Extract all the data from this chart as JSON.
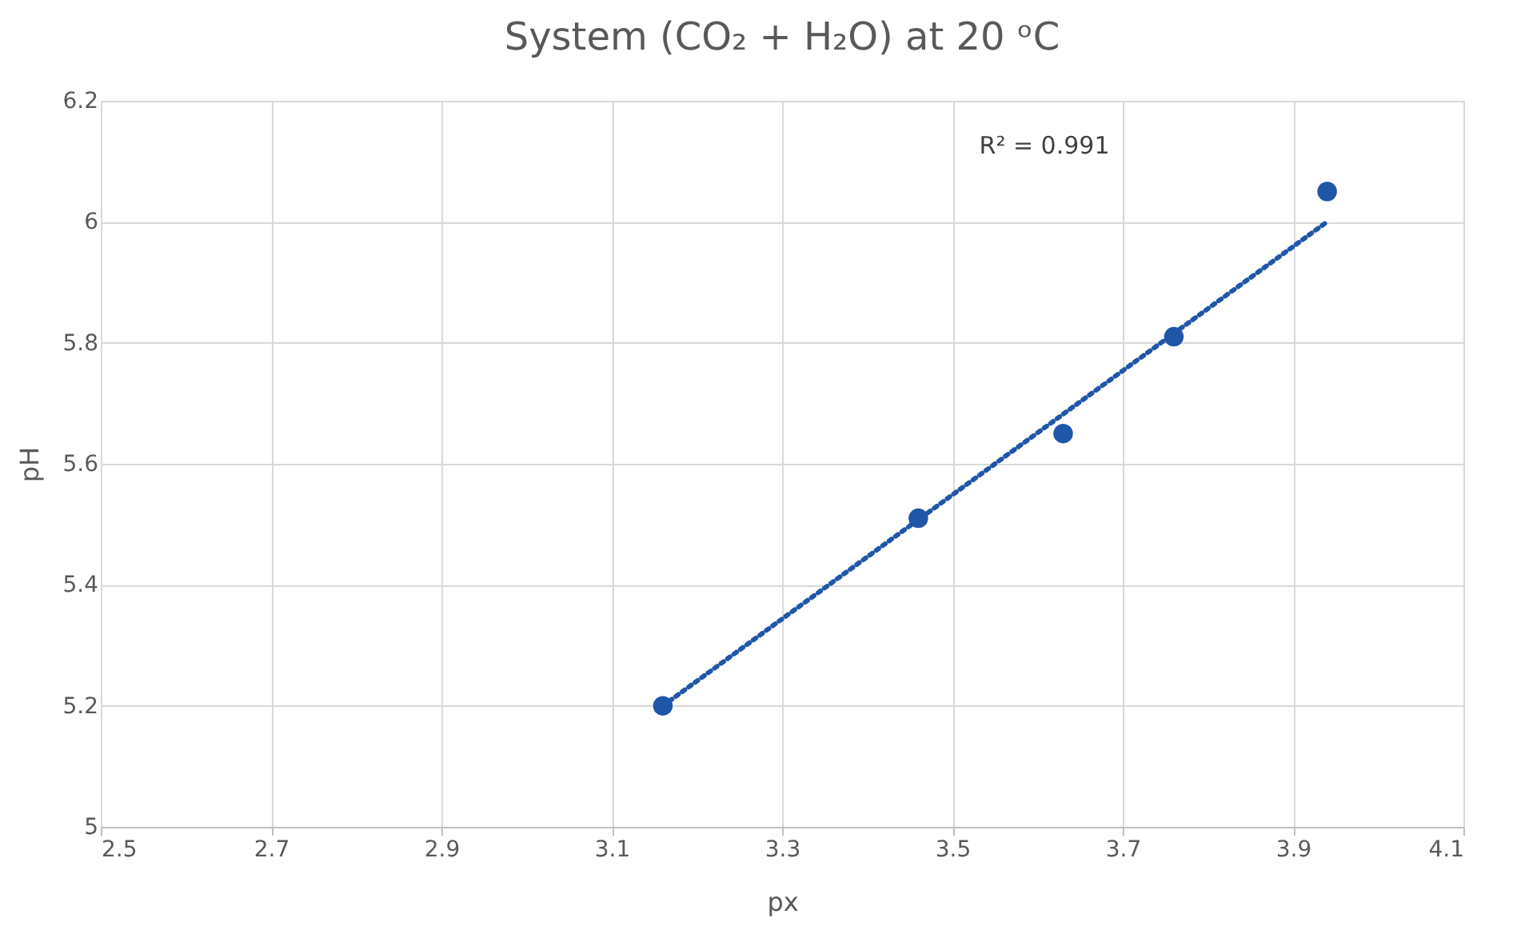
{
  "chart_data": {
    "type": "scatter",
    "title": "System (CO₂ + H₂O) at 20 ᵒC",
    "xlabel": "px",
    "ylabel": "pH",
    "xlim": [
      2.5,
      4.1
    ],
    "xticks": [
      2.5,
      2.7,
      2.9,
      3.1,
      3.3,
      3.5,
      3.7,
      3.9,
      4.1
    ],
    "ylim": [
      5,
      6.2
    ],
    "yticks": [
      5,
      5.2,
      5.4,
      5.6,
      5.8,
      6,
      6.2
    ],
    "grid": true,
    "marker": "circle",
    "annotations": [
      "R² = 0.991"
    ],
    "series": [
      {
        "color": "#1f56a8",
        "x": [
          3.16,
          3.46,
          3.63,
          3.76,
          3.94
        ],
        "values": [
          5.2,
          5.51,
          5.65,
          5.81,
          6.05
        ]
      },
      {
        "type": "line",
        "color": "#1f56a8",
        "line_style": "dotted",
        "marker": "none",
        "x": [
          3.16,
          3.94
        ],
        "values": [
          5.2,
          6.0
        ]
      }
    ]
  }
}
